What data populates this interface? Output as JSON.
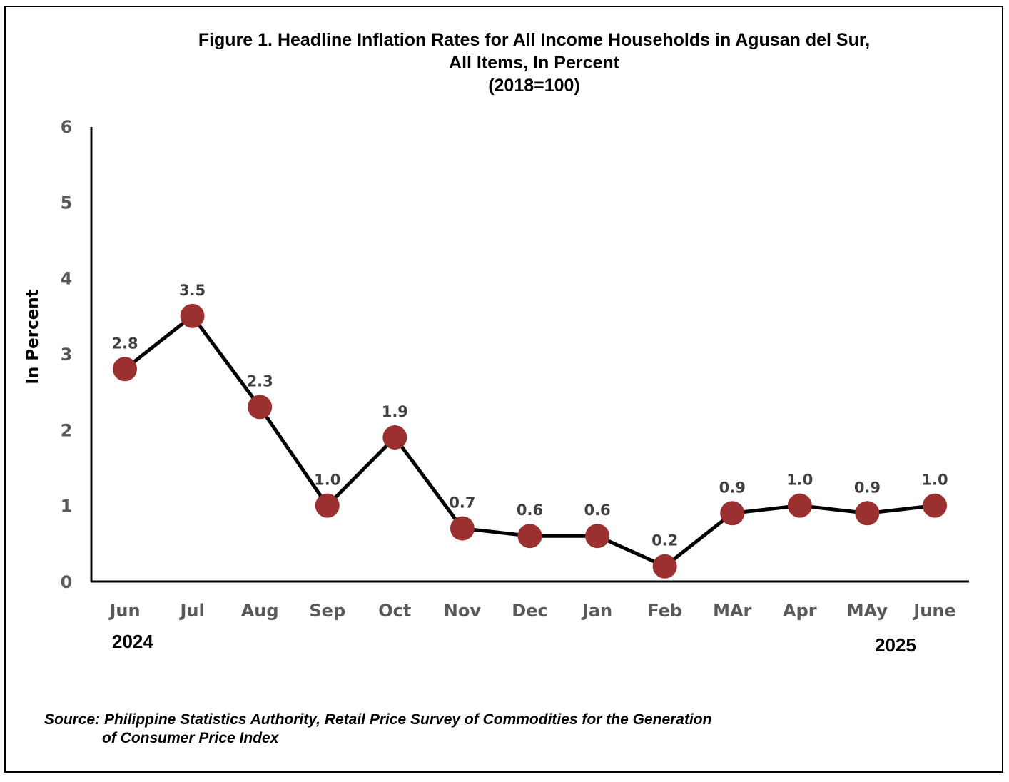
{
  "chart_data": {
    "type": "line",
    "title": "Figure 1. Headline Inflation Rates for All Income Households in Agusan del Sur,",
    "title_line2": "All Items, In Percent",
    "subtitle": "(2018=100)",
    "ylabel": "In Percent",
    "xlabel": "",
    "categories": [
      "Jun",
      "Jul",
      "Aug",
      "Sep",
      "Oct",
      "Nov",
      "Dec",
      "Jan",
      "Feb",
      "MAr",
      "Apr",
      "MAy",
      "June"
    ],
    "values": [
      2.8,
      3.5,
      2.3,
      1.0,
      1.9,
      0.7,
      0.6,
      0.6,
      0.2,
      0.9,
      1.0,
      0.9,
      1.0
    ],
    "data_labels": [
      "2.8",
      "3.5",
      "2.3",
      "1.0",
      "1.9",
      "0.7",
      "0.6",
      "0.6",
      "0.2",
      "0.9",
      "1.0",
      "0.9",
      "1.0"
    ],
    "ylim": [
      0,
      6
    ],
    "yticks": [
      "0",
      "1",
      "2",
      "3",
      "4",
      "5",
      "6"
    ],
    "year_start": "2024",
    "year_end": "2025",
    "grid": false,
    "legend": "none",
    "colors": {
      "line": "#000000",
      "marker": "#9b3030",
      "tick_label": "#595959",
      "data_label": "#404040"
    }
  },
  "source": {
    "line1": "Source: Philippine Statistics Authority, Retail Price Survey of Commodities for the Generation",
    "line2": "of Consumer Price Index"
  }
}
